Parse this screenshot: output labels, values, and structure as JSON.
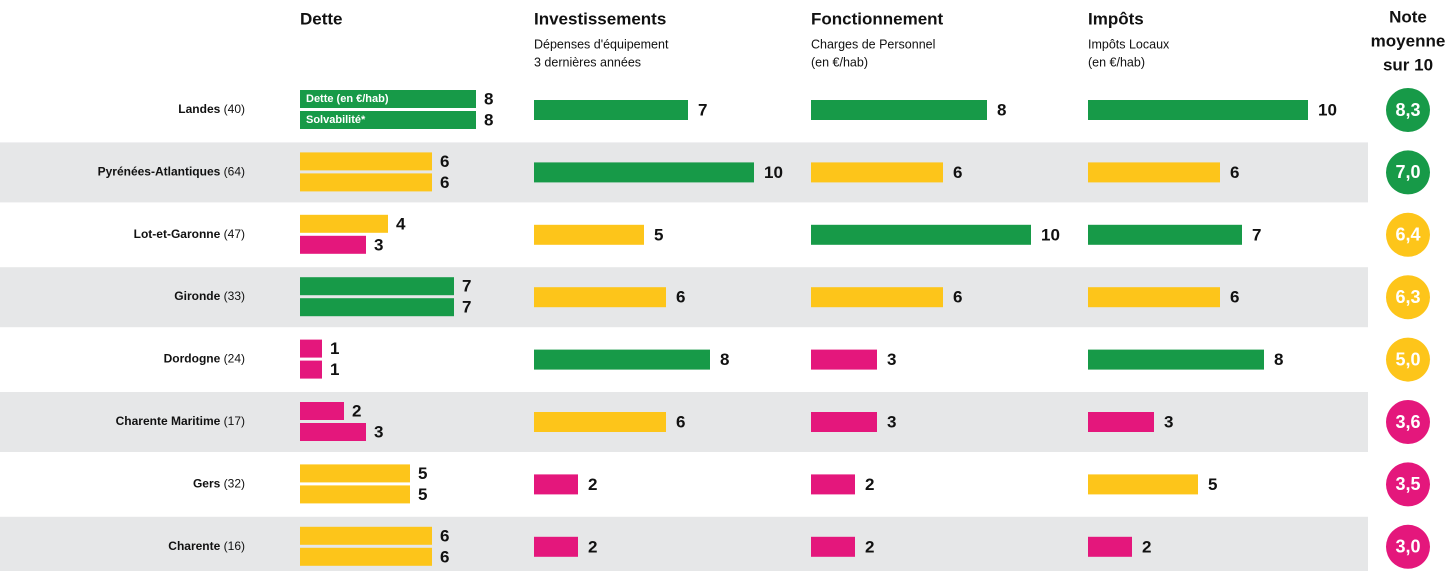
{
  "columns": [
    {
      "title": "Dette",
      "key": "dette"
    },
    {
      "title": "Investissements",
      "subtitle": [
        "Dépenses d'équipement",
        "3 dernières années"
      ],
      "key": "investissements"
    },
    {
      "title": "Fonctionnement",
      "subtitle": [
        "Charges de Personnel",
        "(en €/hab)"
      ],
      "key": "fonctionnement"
    },
    {
      "title": "Impôts",
      "subtitle": [
        "Impôts Locaux",
        "(en €/hab)"
      ],
      "key": "impots"
    }
  ],
  "dette_labels": [
    "Dette (en €/hab)",
    "Solvabilité*"
  ],
  "note_header": [
    "Note",
    "moyenne",
    "sur 10"
  ],
  "color_scale": [
    {
      "min": 7,
      "color": "#179a48"
    },
    {
      "min": 4,
      "color": "#fdc51a"
    },
    {
      "min": 0,
      "color": "#e4177c"
    }
  ],
  "rows": [
    {
      "name": "Landes",
      "code": "(40)",
      "dette": 8,
      "solvabilite": 8,
      "investissements": 7,
      "fonctionnement": 8,
      "impots": 10,
      "note": 8.3,
      "note_label": "8,3"
    },
    {
      "name": "Pyrénées-Atlantiques",
      "code": "(64)",
      "dette": 6,
      "solvabilite": 6,
      "investissements": 10,
      "fonctionnement": 6,
      "impots": 6,
      "note": 7.0,
      "note_label": "7,0"
    },
    {
      "name": "Lot-et-Garonne",
      "code": "(47)",
      "dette": 4,
      "solvabilite": 3,
      "investissements": 5,
      "fonctionnement": 10,
      "impots": 7,
      "note": 6.4,
      "note_label": "6,4"
    },
    {
      "name": "Gironde",
      "code": "(33)",
      "dette": 7,
      "solvabilite": 7,
      "investissements": 6,
      "fonctionnement": 6,
      "impots": 6,
      "note": 6.3,
      "note_label": "6,3"
    },
    {
      "name": "Dordogne",
      "code": "(24)",
      "dette": 1,
      "solvabilite": 1,
      "investissements": 8,
      "fonctionnement": 3,
      "impots": 8,
      "note": 5.0,
      "note_label": "5,0"
    },
    {
      "name": "Charente Maritime",
      "code": "(17)",
      "dette": 2,
      "solvabilite": 3,
      "investissements": 6,
      "fonctionnement": 3,
      "impots": 3,
      "note": 3.6,
      "note_label": "3,6"
    },
    {
      "name": "Gers",
      "code": "(32)",
      "dette": 5,
      "solvabilite": 5,
      "investissements": 2,
      "fonctionnement": 2,
      "impots": 5,
      "note": 3.5,
      "note_label": "3,5"
    },
    {
      "name": "Charente",
      "code": "(16)",
      "dette": 6,
      "solvabilite": 6,
      "investissements": 2,
      "fonctionnement": 2,
      "impots": 2,
      "note": 3.0,
      "note_label": "3,0"
    }
  ]
}
